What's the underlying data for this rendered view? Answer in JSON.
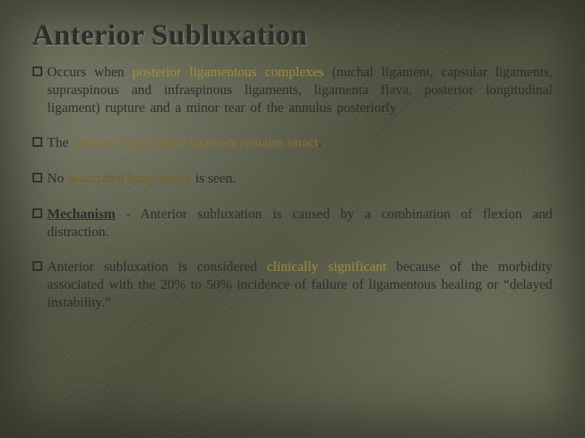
{
  "slide": {
    "title": "Anterior Subluxation",
    "bullets": [
      {
        "prefix": "Occurs when ",
        "highlight": "posterior ligamentous complexes",
        "highlightClass": "hl-posterior",
        "suffix": " (nuchal ligament, capsular ligaments, supraspinous and infraspinous ligaments, ligamenta flava, posterior longitudinal ligament) rupture and a minor tear of the annulus posteriorly"
      },
      {
        "prefix": "The ",
        "highlight": "anterior longitudinal ligament remains intact",
        "highlightClass": "hl-anterior",
        "suffix": "."
      },
      {
        "prefix": "No ",
        "highlight": "associated bony injury",
        "highlightClass": "hl-bony",
        "suffix": " is seen."
      },
      {
        "prefix": "",
        "highlight": "Mechanism",
        "highlightClass": "hl-mech",
        "suffix": " - Anterior subluxation is caused by a combination of flexion and distraction."
      },
      {
        "prefix": "Anterior subluxation is considered ",
        "highlight": "clinically significant",
        "highlightClass": "hl-clin",
        "suffix": " because of the morbidity associated with the 20% to 50% incidence of failure of ligamentous healing or “delayed instability.”"
      }
    ]
  },
  "style": {
    "title_color": "#2d2d2d",
    "body_color": "#2d2d2d",
    "highlight_gold": "#a68b3a",
    "background_base": "#5a5e4a",
    "title_fontsize": 36,
    "body_fontsize": 17
  }
}
